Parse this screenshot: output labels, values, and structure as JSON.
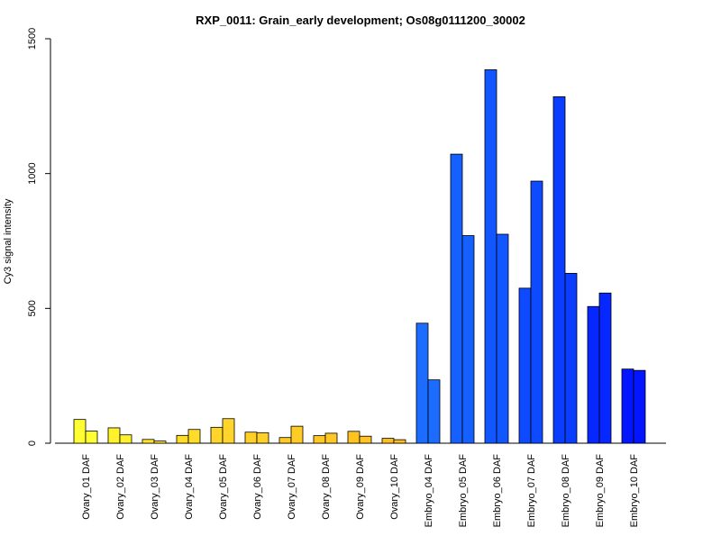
{
  "chart_data": {
    "type": "bar",
    "title": "RXP_0011: Grain_early development; Os08g0111200_30002",
    "xlabel": "",
    "ylabel": "Cy3 signal intensity",
    "ylim": [
      0,
      1500
    ],
    "yticks": [
      0,
      500,
      1000,
      1500
    ],
    "grid": false,
    "categories": [
      "Ovary_01 DAF",
      "Ovary_02 DAF",
      "Ovary_03 DAF",
      "Ovary_04 DAF",
      "Ovary_05 DAF",
      "Ovary_06 DAF",
      "Ovary_07 DAF",
      "Ovary_08 DAF",
      "Ovary_09 DAF",
      "Ovary_10 DAF",
      "Embryo_04 DAF",
      "Embryo_05 DAF",
      "Embryo_06 DAF",
      "Embryo_07 DAF",
      "Embryo_08 DAF",
      "Embryo_09 DAF",
      "Embryo_10 DAF"
    ],
    "values": [
      [
        88,
        45
      ],
      [
        57,
        31
      ],
      [
        14,
        8
      ],
      [
        29,
        51
      ],
      [
        59,
        91
      ],
      [
        41,
        39
      ],
      [
        21,
        63
      ],
      [
        28,
        37
      ],
      [
        44,
        26
      ],
      [
        18,
        13
      ],
      [
        445,
        235
      ],
      [
        1072,
        770
      ],
      [
        1385,
        775
      ],
      [
        575,
        972
      ],
      [
        1285,
        630
      ],
      [
        507,
        557
      ],
      [
        275,
        270
      ]
    ],
    "colors": [
      "#ffff33",
      "#fff12c",
      "#ffe42a",
      "#ffdc28",
      "#ffd52b",
      "#ffd027",
      "#ffcc25",
      "#ffc824",
      "#ffc322",
      "#ffbd20",
      "#1c6dff",
      "#1560ff",
      "#1256ff",
      "#0e4aff",
      "#0b3dff",
      "#0627ff",
      "#0316ff"
    ]
  }
}
